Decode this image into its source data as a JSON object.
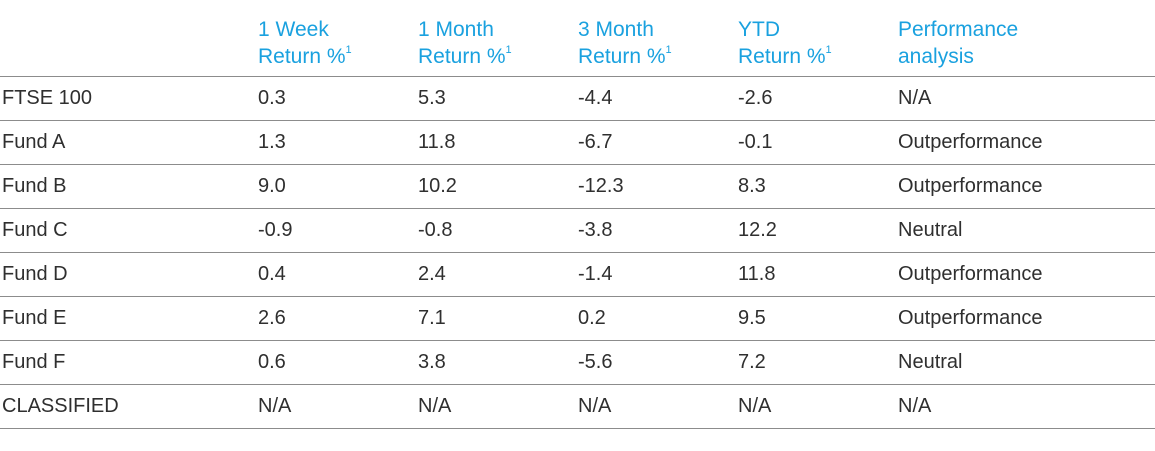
{
  "header": {
    "corner": "",
    "columns": [
      {
        "line1": "1 Week",
        "line2": "Return %",
        "sup": "1"
      },
      {
        "line1": "1 Month",
        "line2": "Return %",
        "sup": "1"
      },
      {
        "line1": "3 Month",
        "line2": "Return %",
        "sup": "1"
      },
      {
        "line1": "YTD",
        "line2": "Return %",
        "sup": "1"
      },
      {
        "line1": "Performance",
        "line2": "analysis",
        "sup": ""
      }
    ]
  },
  "rows": [
    {
      "name": "FTSE 100",
      "w1": "0.3",
      "m1": "5.3",
      "m3": "-4.4",
      "ytd": "-2.6",
      "analysis": "N/A"
    },
    {
      "name": "Fund A",
      "w1": "1.3",
      "m1": "11.8",
      "m3": "-6.7",
      "ytd": "-0.1",
      "analysis": "Outperformance"
    },
    {
      "name": "Fund B",
      "w1": "9.0",
      "m1": "10.2",
      "m3": "-12.3",
      "ytd": "8.3",
      "analysis": "Outperformance"
    },
    {
      "name": "Fund C",
      "w1": "-0.9",
      "m1": "-0.8",
      "m3": "-3.8",
      "ytd": "12.2",
      "analysis": "Neutral"
    },
    {
      "name": "Fund D",
      "w1": "0.4",
      "m1": "2.4",
      "m3": "-1.4",
      "ytd": "11.8",
      "analysis": "Outperformance"
    },
    {
      "name": "Fund E",
      "w1": "2.6",
      "m1": "7.1",
      "m3": "0.2",
      "ytd": "9.5",
      "analysis": "Outperformance"
    },
    {
      "name": "Fund F",
      "w1": "0.6",
      "m1": "3.8",
      "m3": "-5.6",
      "ytd": "7.2",
      "analysis": "Neutral"
    },
    {
      "name": "CLASSIFIED",
      "w1": "N/A",
      "m1": "N/A",
      "m3": "N/A",
      "ytd": "N/A",
      "analysis": "N/A"
    }
  ],
  "colors": {
    "header_text": "#1aa1df",
    "body_text": "#2f2f2f",
    "rule": "#8c8c8c"
  }
}
